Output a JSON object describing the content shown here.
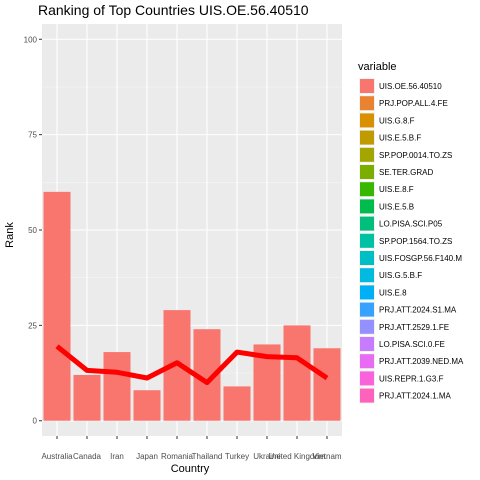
{
  "chart_data": {
    "type": "bar",
    "title": "Ranking of Top Countries UIS.OE.56.40510",
    "xlabel": "Country",
    "ylabel": "Rank",
    "ylim": [
      -4,
      104
    ],
    "yticks": [
      0,
      25,
      50,
      75,
      100
    ],
    "grid": true,
    "categories": [
      "Australia",
      "Canada",
      "Iran",
      "Japan",
      "Romania",
      "Thailand",
      "Turkey",
      "Ukraine",
      "United Kingdom",
      "Vietnam"
    ],
    "values": [
      60,
      12,
      18,
      8,
      29,
      24,
      9,
      20,
      25,
      19
    ],
    "bar_color": "#F8766D",
    "trend_line": {
      "color": "#FF0000",
      "values": [
        19.5,
        13.2,
        12.7,
        11.2,
        15.2,
        10.0,
        18.0,
        16.8,
        16.5,
        11.2
      ]
    },
    "legend": {
      "title": "variable",
      "position": "right",
      "items": [
        {
          "label": "UIS.OE.56.40510",
          "color": "#F8766D"
        },
        {
          "label": "PRJ.POP.ALL.4.FE",
          "color": "#EA8331"
        },
        {
          "label": "UIS.G.8.F",
          "color": "#D89000"
        },
        {
          "label": "UIS.E.5.B.F",
          "color": "#C09B00"
        },
        {
          "label": "SP.POP.0014.TO.ZS",
          "color": "#A3A500"
        },
        {
          "label": "SE.TER.GRAD",
          "color": "#7CAE00"
        },
        {
          "label": "UIS.E.8.F",
          "color": "#39B600"
        },
        {
          "label": "UIS.E.5.B",
          "color": "#00BB4E"
        },
        {
          "label": "LO.PISA.SCI.P05",
          "color": "#00BF7D"
        },
        {
          "label": "SP.POP.1564.TO.ZS",
          "color": "#00C1A3"
        },
        {
          "label": "UIS.FOSGP.56.F140.M",
          "color": "#00BFC4"
        },
        {
          "label": "UIS.G.5.B.F",
          "color": "#00BAE0"
        },
        {
          "label": "UIS.E.8",
          "color": "#00B0F6"
        },
        {
          "label": "PRJ.ATT.2024.S1.MA",
          "color": "#35A2FF"
        },
        {
          "label": "PRJ.ATT.2529.1.FE",
          "color": "#9590FF"
        },
        {
          "label": "LO.PISA.SCI.0.FE",
          "color": "#C77CFF"
        },
        {
          "label": "PRJ.ATT.2039.NED.MA",
          "color": "#E76BF3"
        },
        {
          "label": "UIS.REPR.1.G3.F",
          "color": "#FA62DB"
        },
        {
          "label": "PRJ.ATT.2024.1.MA",
          "color": "#FF62BC"
        }
      ]
    }
  }
}
